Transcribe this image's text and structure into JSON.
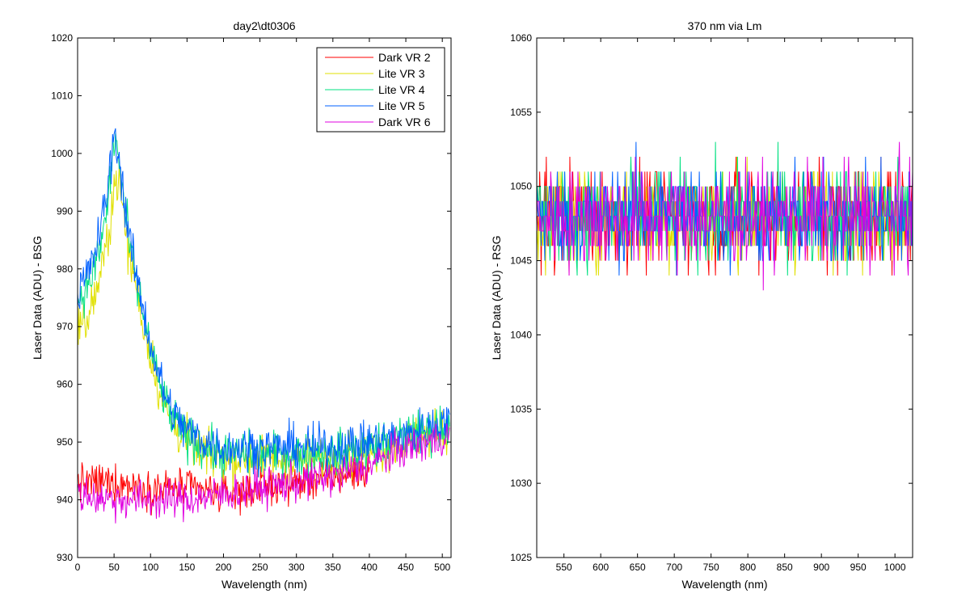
{
  "figure": {
    "background": "#ffffff"
  },
  "chart_data": [
    {
      "type": "line",
      "title": "day2\\dt0306",
      "xlabel": "Wavelength (nm)",
      "ylabel": "Laser Data (ADU) - BSG",
      "xlim": [
        0,
        512
      ],
      "ylim": [
        930,
        1020
      ],
      "xticks": [
        0,
        50,
        100,
        150,
        200,
        250,
        300,
        350,
        400,
        450,
        500
      ],
      "yticks": [
        930,
        940,
        950,
        960,
        970,
        980,
        990,
        1000,
        1010,
        1020
      ],
      "legend_position": "top-right",
      "series": [
        {
          "name": "Dark VR 2",
          "color": "#ff0000",
          "x": [
            0,
            50,
            100,
            150,
            200,
            250,
            300,
            350,
            400
          ],
          "y": [
            943,
            943,
            942,
            942,
            941,
            942,
            943,
            944,
            945
          ]
        },
        {
          "name": "Lite VR 3",
          "color": "#e0e000",
          "x": [
            0,
            10,
            20,
            30,
            40,
            50,
            55,
            60,
            70,
            80,
            90,
            100,
            110,
            120,
            130,
            150,
            175,
            200,
            250,
            300,
            350,
            400,
            450,
            510
          ],
          "y": [
            972,
            970,
            974,
            978,
            984,
            994,
            996,
            992,
            983,
            977,
            970,
            965,
            960,
            956,
            953,
            950,
            948,
            947,
            947,
            947,
            947,
            948,
            950,
            952
          ]
        },
        {
          "name": "Lite VR 4",
          "color": "#00e080",
          "x": [
            0,
            10,
            20,
            30,
            40,
            50,
            55,
            60,
            70,
            80,
            90,
            100,
            110,
            120,
            130,
            150,
            175,
            200,
            250,
            300,
            350,
            400,
            450,
            510
          ],
          "y": [
            975,
            976,
            979,
            983,
            990,
            1002,
            1001,
            995,
            985,
            978,
            972,
            966,
            961,
            957,
            954,
            951,
            949,
            948,
            948,
            948,
            948,
            949,
            951,
            953
          ]
        },
        {
          "name": "Lite VR 5",
          "color": "#0060ff",
          "x": [
            0,
            10,
            20,
            30,
            40,
            50,
            55,
            60,
            70,
            80,
            90,
            100,
            110,
            120,
            130,
            150,
            175,
            200,
            250,
            300,
            350,
            400,
            450,
            510
          ],
          "y": [
            976,
            978,
            981,
            986,
            993,
            1003,
            1001,
            996,
            986,
            979,
            973,
            967,
            962,
            958,
            955,
            952,
            950,
            949,
            949,
            949,
            949,
            950,
            951,
            954
          ]
        },
        {
          "name": "Dark VR 6",
          "color": "#e000e0",
          "x": [
            0,
            50,
            100,
            150,
            200,
            250,
            300,
            350,
            400,
            450,
            510
          ],
          "y": [
            941,
            940,
            940,
            940,
            941,
            942,
            943,
            944,
            946,
            949,
            951
          ]
        }
      ]
    },
    {
      "type": "line",
      "title": "370 nm via Lm",
      "xlabel": "Wavelength (nm)",
      "ylabel": "Laser Data (ADU) - RSG",
      "xlim": [
        513,
        1024
      ],
      "ylim": [
        1025,
        1060
      ],
      "xticks": [
        550,
        600,
        650,
        700,
        750,
        800,
        850,
        900,
        950,
        1000
      ],
      "yticks": [
        1025,
        1030,
        1035,
        1040,
        1045,
        1050,
        1055,
        1060
      ],
      "series": [
        {
          "color": "#ff0000",
          "x": [
            513,
            1024
          ],
          "y": [
            1048,
            1048
          ]
        },
        {
          "color": "#e0e000",
          "x": [
            513,
            1024
          ],
          "y": [
            1048,
            1048
          ]
        },
        {
          "color": "#00e080",
          "x": [
            513,
            1024
          ],
          "y": [
            1048,
            1048
          ]
        },
        {
          "color": "#0060ff",
          "x": [
            513,
            1024
          ],
          "y": [
            1048,
            1048
          ]
        },
        {
          "color": "#e000e0",
          "x": [
            513,
            1024
          ],
          "y": [
            1048,
            1048
          ]
        }
      ]
    }
  ]
}
